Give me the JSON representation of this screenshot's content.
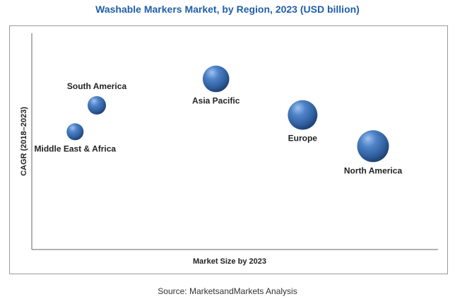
{
  "chart_data": {
    "type": "scatter",
    "title": "Washable Markers Market, by Region, 2023 (USD billion)",
    "xlabel": "Market Size by 2023",
    "ylabel": "CAGR (2018–2023)",
    "grid": false,
    "points": [
      {
        "label": "South America",
        "x": 1.2,
        "y": 6.0,
        "size": 1.0,
        "label_position": "top"
      },
      {
        "label": "Middle East & Africa",
        "x": 0.8,
        "y": 4.9,
        "size": 0.85,
        "label_position": "bottom"
      },
      {
        "label": "Asia Pacific",
        "x": 3.4,
        "y": 7.1,
        "size": 2.1,
        "label_position": "bottom"
      },
      {
        "label": "Europe",
        "x": 5.0,
        "y": 5.6,
        "size": 2.6,
        "label_position": "bottom"
      },
      {
        "label": "North America",
        "x": 6.3,
        "y": 4.3,
        "size": 3.0,
        "label_position": "bottom"
      }
    ],
    "bubble_color": "#3f73b8"
  },
  "source": "Source: MarketsandMarkets Analysis"
}
